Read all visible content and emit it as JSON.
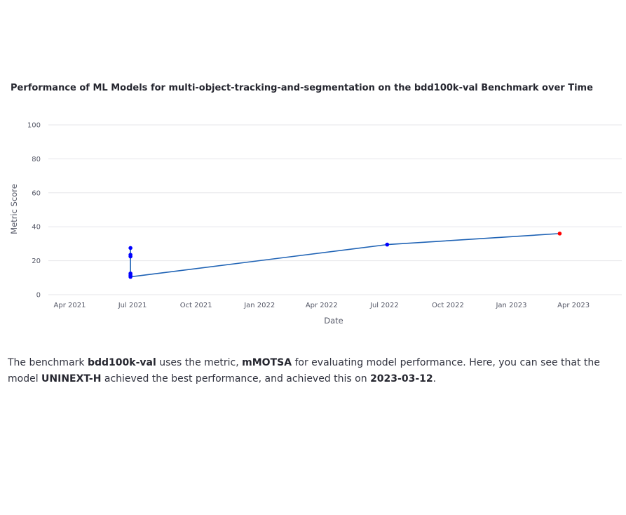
{
  "chart_data": {
    "type": "line",
    "title": "Performance of ML Models for multi-object-tracking-and-segmentation on the bdd100k-val Benchmark over Time",
    "xlabel": "Date",
    "ylabel": "Metric Score",
    "xlim": [
      "2021-03-01",
      "2023-06-10"
    ],
    "ylim": [
      0,
      100
    ],
    "x_ticks": [
      {
        "date": "2021-04-01",
        "label": "Apr 2021"
      },
      {
        "date": "2021-07-01",
        "label": "Jul 2021"
      },
      {
        "date": "2021-10-01",
        "label": "Oct 2021"
      },
      {
        "date": "2022-01-01",
        "label": "Jan 2022"
      },
      {
        "date": "2022-04-01",
        "label": "Apr 2022"
      },
      {
        "date": "2022-07-01",
        "label": "Jul 2022"
      },
      {
        "date": "2022-10-01",
        "label": "Oct 2022"
      },
      {
        "date": "2023-01-01",
        "label": "Jan 2023"
      },
      {
        "date": "2023-04-01",
        "label": "Apr 2023"
      }
    ],
    "y_ticks": [
      {
        "value": 0,
        "label": "0"
      },
      {
        "value": 20,
        "label": "20"
      },
      {
        "value": 40,
        "label": "40"
      },
      {
        "value": 60,
        "label": "60"
      },
      {
        "value": 80,
        "label": "80"
      },
      {
        "value": 100,
        "label": "100"
      }
    ],
    "grid": true,
    "series": [
      {
        "color": "#1f63b5",
        "point_color": "#0000ff",
        "points": [
          {
            "x": "2021-06-28",
            "y": 27.5
          },
          {
            "x": "2021-06-28",
            "y": 23.5
          },
          {
            "x": "2021-06-28",
            "y": 22.5
          },
          {
            "x": "2021-06-28",
            "y": 12.5
          },
          {
            "x": "2021-06-28",
            "y": 11.5
          },
          {
            "x": "2021-06-28",
            "y": 10.5
          },
          {
            "x": "2022-07-05",
            "y": 29.5
          },
          {
            "x": "2023-03-12",
            "y": 36.0
          }
        ],
        "best_point": {
          "x": "2023-03-12",
          "y": 36.0,
          "color": "#ff0000"
        }
      }
    ]
  },
  "description": {
    "p1": "The benchmark ",
    "benchmark": "bdd100k-val",
    "p2": " uses the metric, ",
    "metric": "mMOTSA",
    "p3": " for evaluating model performance. Here, you can see that the model ",
    "model": "UNINEXT-H",
    "p4": " achieved the best performance, and achieved this on ",
    "date": "2023-03-12",
    "p5": "."
  }
}
